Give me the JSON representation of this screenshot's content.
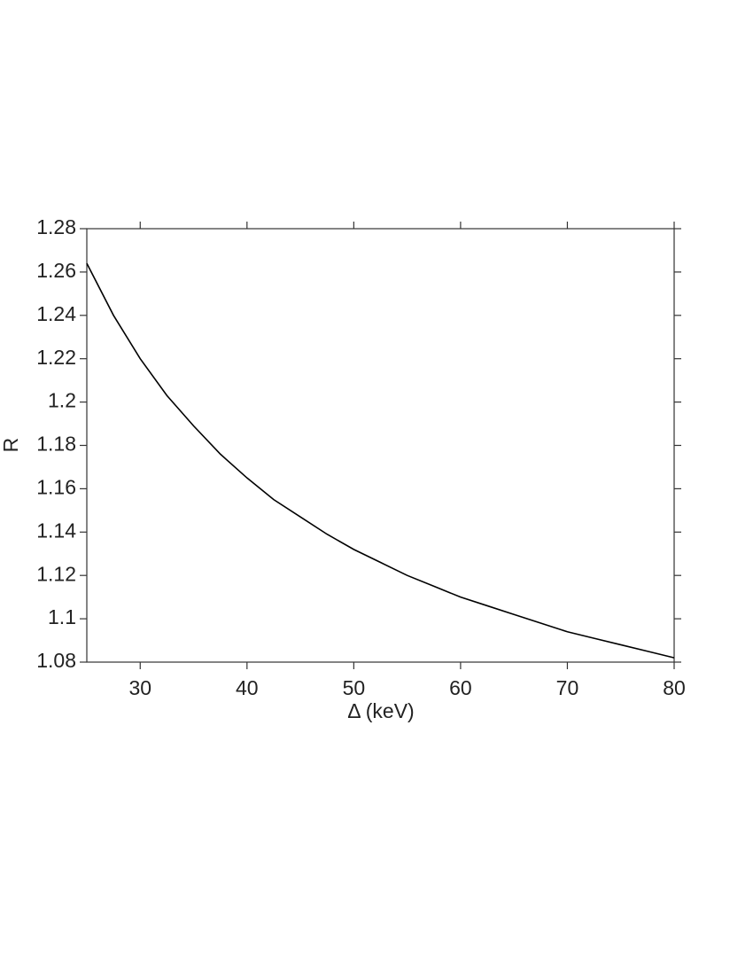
{
  "chart_data": {
    "type": "line",
    "x_label": "Δ (keV)",
    "y_label": "R",
    "x": [
      25,
      27.5,
      30,
      32.5,
      35,
      37.5,
      40,
      42.5,
      45,
      47.5,
      50,
      52.5,
      55,
      57.5,
      60,
      62.5,
      65,
      67.5,
      70,
      72.5,
      75,
      77.5,
      80
    ],
    "series": [
      {
        "color": "#000000",
        "values": [
          1.264,
          1.24,
          1.22,
          1.203,
          1.189,
          1.176,
          1.165,
          1.155,
          1.147,
          1.139,
          1.132,
          1.126,
          1.12,
          1.115,
          1.11,
          1.106,
          1.102,
          1.098,
          1.094,
          1.091,
          1.088,
          1.085,
          1.082
        ]
      }
    ],
    "xlim": [
      25,
      80
    ],
    "xticks": [
      30,
      40,
      50,
      60,
      70,
      80
    ],
    "ylim": [
      1.08,
      1.28
    ],
    "yticks": [
      1.08,
      1.1,
      1.12,
      1.14,
      1.16,
      1.18,
      1.2,
      1.22,
      1.24,
      1.26,
      1.28
    ],
    "grid": false
  }
}
